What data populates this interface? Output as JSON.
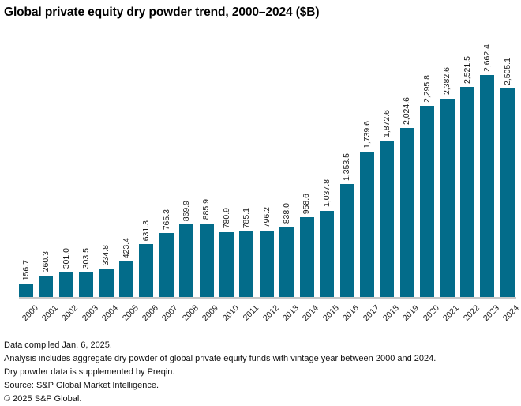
{
  "chart_data": {
    "type": "bar",
    "title": "Global private equity dry powder trend, 2000–2024 ($B)",
    "categories": [
      "2000",
      "2001",
      "2002",
      "2003",
      "2004",
      "2005",
      "2006",
      "2007",
      "2008",
      "2009",
      "2010",
      "2011",
      "2012",
      "2013",
      "2014",
      "2015",
      "2016",
      "2017",
      "2018",
      "2019",
      "2020",
      "2021",
      "2022",
      "2023",
      "2024"
    ],
    "values": [
      156.7,
      260.3,
      301.0,
      303.5,
      334.8,
      423.4,
      631.3,
      765.3,
      869.9,
      885.9,
      780.9,
      785.1,
      796.2,
      838.0,
      958.6,
      1037.8,
      1353.5,
      1739.6,
      1872.6,
      2024.6,
      2295.8,
      2382.6,
      2521.5,
      2662.4,
      2505.1
    ],
    "value_labels": [
      "156.7",
      "260.3",
      "301.0",
      "303.5",
      "334.8",
      "423.4",
      "631.3",
      "765.3",
      "869.9",
      "885.9",
      "780.9",
      "785.1",
      "796.2",
      "838.0",
      "958.6",
      "1,037.8",
      "1,353.5",
      "1,739.6",
      "1,872.6",
      "2,024.6",
      "2,295.8",
      "2,382.6",
      "2,521.5",
      "2,662.4",
      "2,505.1"
    ],
    "xlabel": "",
    "ylabel": "",
    "ylim": [
      0,
      2800
    ],
    "grid": false,
    "legend": false,
    "bar_color": "#036c8a",
    "axis_line_color": "#c9c9c9",
    "data_label_rotation": 90,
    "tick_label_rotation": 45
  },
  "footnotes": {
    "line1": "Data compiled Jan. 6, 2025.",
    "line2": "Analysis includes aggregate dry powder of global private equity funds with vintage year between 2000 and 2024.",
    "line3": "Dry powder data is supplemented by Preqin.",
    "line4": "Source: S&P Global Market Intelligence.",
    "line5": "© 2025 S&P Global."
  }
}
